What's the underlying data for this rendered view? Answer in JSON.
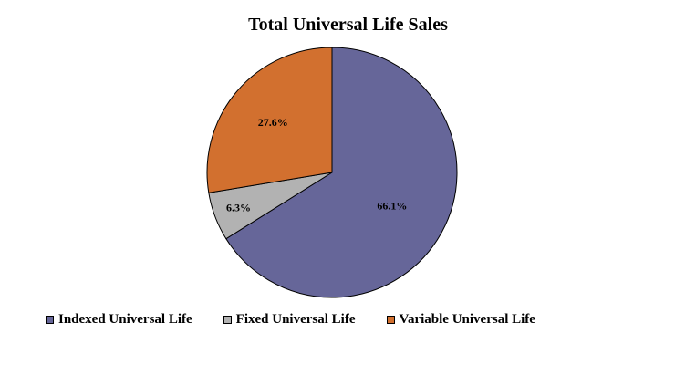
{
  "chart_data": {
    "type": "pie",
    "title": "Total Universal Life Sales",
    "slices": [
      {
        "label": "Indexed Universal Life",
        "value": 66.1,
        "display": "66.1%",
        "color": "#666699"
      },
      {
        "label": "Fixed Universal Life",
        "value": 6.3,
        "display": "6.3%",
        "color": "#b2b2b2"
      },
      {
        "label": "Variable Universal Life",
        "value": 27.6,
        "display": "27.6%",
        "color": "#d2702f"
      }
    ],
    "legend_position": "bottom"
  }
}
